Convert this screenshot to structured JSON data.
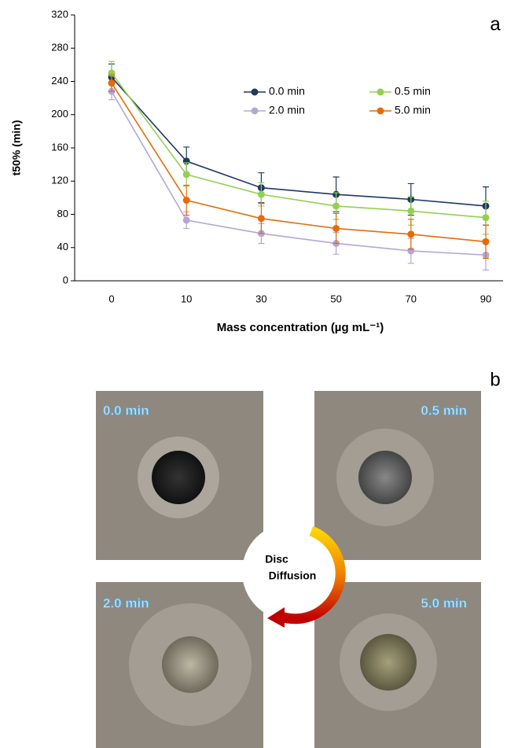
{
  "chart_data": {
    "type": "line",
    "panel_label": "a",
    "ylabel": "t50% (min)",
    "xlabel": "Mass concentration (µg mL⁻¹)",
    "categories": [
      "0",
      "10",
      "30",
      "50",
      "70",
      "90"
    ],
    "ylim": [
      0,
      320
    ],
    "yticks": [
      0,
      40,
      80,
      120,
      160,
      200,
      240,
      280,
      320
    ],
    "series": [
      {
        "name": "0.0 min",
        "color": "#1f3864",
        "values": [
          245,
          144,
          112,
          104,
          98,
          90
        ],
        "errors": [
          16,
          17,
          18,
          21,
          19,
          23
        ]
      },
      {
        "name": "0.5 min",
        "color": "#92d050",
        "values": [
          250,
          128,
          104,
          90,
          84,
          76
        ],
        "errors": [
          14,
          14,
          14,
          16,
          17,
          20
        ]
      },
      {
        "name": "2.0 min",
        "color": "#b4a7d6",
        "values": [
          228,
          73,
          57,
          45,
          36,
          31
        ],
        "errors": [
          10,
          10,
          12,
          13,
          15,
          18
        ]
      },
      {
        "name": "5.0 min",
        "color": "#e46c0a",
        "values": [
          238,
          97,
          75,
          63,
          56,
          47
        ],
        "errors": [
          10,
          18,
          18,
          18,
          18,
          20
        ]
      }
    ]
  },
  "panel_b": {
    "panel_label": "b",
    "tiles": [
      "0.0 min",
      "0.5 min",
      "2.0 min",
      "5.0 min"
    ],
    "center_label": [
      "Disc",
      "Diffusion"
    ]
  }
}
